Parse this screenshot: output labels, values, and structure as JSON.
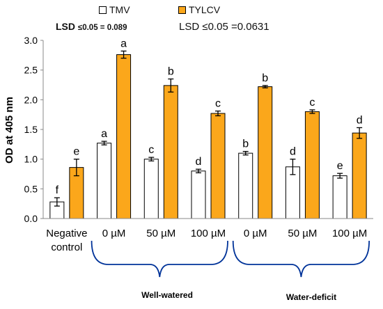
{
  "chart_data": {
    "type": "bar",
    "categories": [
      "Negative control",
      "0 µM",
      "50 µM",
      "100 µM",
      "0 µM",
      "50 µM",
      "100 µM"
    ],
    "category_lines": [
      [
        "Negative",
        "control"
      ],
      [
        "0 µM"
      ],
      [
        "50 µM"
      ],
      [
        "100 µM"
      ],
      [
        "0 µM"
      ],
      [
        "50 µM"
      ],
      [
        "100 µM"
      ]
    ],
    "series": [
      {
        "name": "TMV",
        "color": "#ffffff",
        "values": [
          0.28,
          1.27,
          1.0,
          0.8,
          1.1,
          0.87,
          0.72
        ],
        "errors": [
          0.07,
          0.03,
          0.03,
          0.03,
          0.03,
          0.13,
          0.04
        ],
        "letters": [
          "f",
          "a",
          "c",
          "d",
          "b",
          "d",
          "e"
        ]
      },
      {
        "name": "TYLCV",
        "color": "#fba71b",
        "values": [
          0.86,
          2.76,
          2.24,
          1.77,
          2.22,
          1.8,
          1.44
        ],
        "errors": [
          0.14,
          0.06,
          0.11,
          0.04,
          0.02,
          0.03,
          0.09
        ],
        "letters": [
          "e",
          "a",
          "b",
          "c",
          "b",
          "c",
          "d"
        ]
      }
    ],
    "xlabel": "",
    "ylabel": "OD at 405 nm",
    "ylim": [
      0,
      3.0
    ],
    "yticks": [
      0.0,
      0.5,
      1.0,
      1.5,
      2.0,
      2.5,
      3.0
    ],
    "ytick_labels": [
      "0.0",
      "0.5",
      "1.0",
      "1.5",
      "2.0",
      "2.5",
      "3.0"
    ],
    "grid": false,
    "legend_position": "top"
  },
  "annotations": {
    "lsd_left_prefix": "LSD",
    "lsd_left_leq": "≤",
    "lsd_left_value": "0.05 = 0.089",
    "lsd_right_prefix": "LSD",
    "lsd_right_leq": "≤",
    "lsd_right_value": "0.05 =0.0631",
    "group_1_label": "Well-watered",
    "group_2_label": "Water-deficit"
  },
  "colors": {
    "accent": "#fba71b",
    "bracket": "#003399",
    "axis": "#888888"
  }
}
